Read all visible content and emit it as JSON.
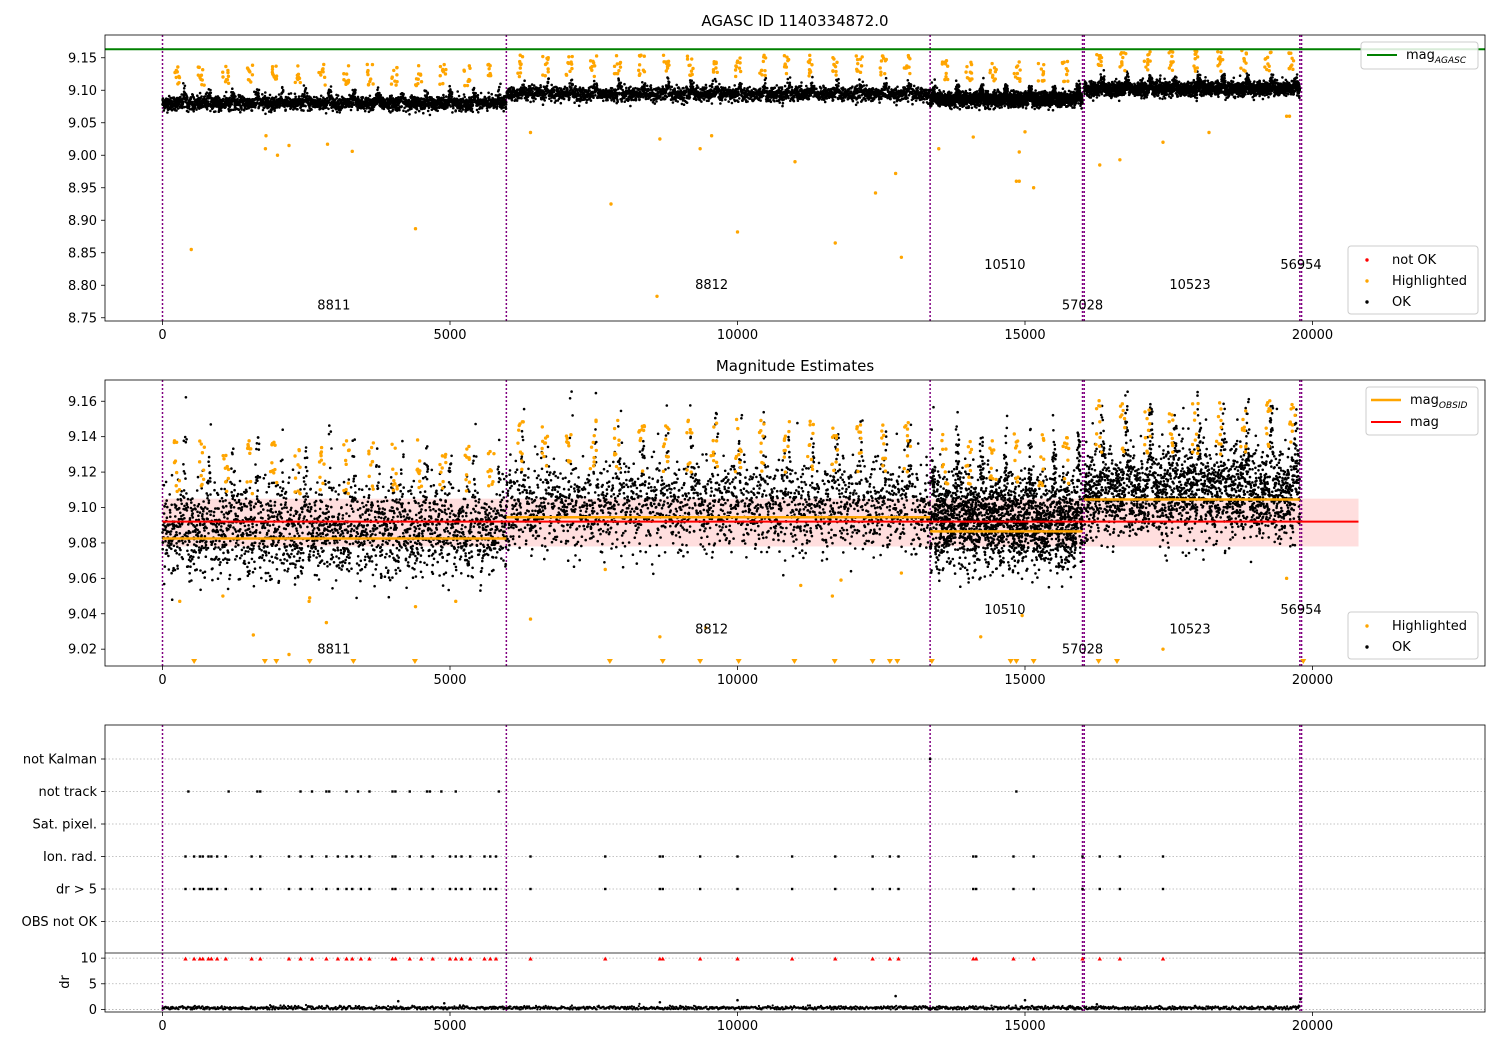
{
  "figure": {
    "background": "#ffffff"
  },
  "colors": {
    "ok": "#000000",
    "highlighted": "#ffa500",
    "not_ok": "#ff0000",
    "agasc_line": "#008000",
    "mag_line": "#ff0000",
    "mag_band": "#ffdede",
    "obsid_line": "#ffa500",
    "obs_boundary": "#800080",
    "grid": "#b0b0b0"
  },
  "chart_data": [
    {
      "type": "scatter",
      "title": "AGASC ID 1140334872.0",
      "xlim": [
        -1000,
        23000
      ],
      "ylim": [
        8.745,
        9.185
      ],
      "xticks": [
        0,
        5000,
        10000,
        15000,
        20000
      ],
      "xtick_labels": [
        "0",
        "5000",
        "10000",
        "15000",
        "20000"
      ],
      "yticks": [
        8.75,
        8.8,
        8.85,
        8.9,
        8.95,
        9.0,
        9.05,
        9.1,
        9.15
      ],
      "ytick_labels": [
        "8.75",
        "8.80",
        "8.85",
        "8.90",
        "8.95",
        "9.00",
        "9.05",
        "9.10",
        "9.15"
      ],
      "hlines": [
        {
          "name": "mag_AGASC",
          "y": 9.163,
          "x_range": [
            -1000,
            23000
          ],
          "color": "#008000"
        }
      ],
      "obs_boundaries": [
        0,
        5980,
        13350,
        16000,
        16030,
        19780,
        19810
      ],
      "obsids": [
        {
          "label": "8811",
          "x": 2980,
          "y": 8.763
        },
        {
          "label": "8812",
          "x": 9550,
          "y": 8.794
        },
        {
          "label": "10510",
          "x": 14650,
          "y": 8.825
        },
        {
          "label": "57028",
          "x": 16000,
          "y": 8.763
        },
        {
          "label": "10523",
          "x": 17870,
          "y": 8.794
        },
        {
          "label": "56954",
          "x": 19800,
          "y": 8.825
        }
      ],
      "segments": [
        {
          "obsid": "8811",
          "x_range": [
            0,
            5980
          ],
          "mean": 9.08,
          "spread": 0.012
        },
        {
          "obsid": "8812",
          "x_range": [
            5980,
            13350
          ],
          "mean": 9.094,
          "spread": 0.012
        },
        {
          "obsid": "10510",
          "x_range": [
            13350,
            16000
          ],
          "mean": 9.086,
          "spread": 0.012
        },
        {
          "obsid": "10523",
          "x_range": [
            16030,
            19780
          ],
          "mean": 9.102,
          "spread": 0.012
        }
      ],
      "series": [
        {
          "name": "not OK",
          "color": "#ff0000",
          "points": []
        },
        {
          "name": "Highlighted",
          "color": "#ffa500",
          "points": [
            [
              500,
              8.855
            ],
            [
              1800,
              9.03
            ],
            [
              1790,
              9.01
            ],
            [
              2000,
              9.0
            ],
            [
              2200,
              9.015
            ],
            [
              2870,
              9.017
            ],
            [
              3300,
              9.006
            ],
            [
              4400,
              8.887
            ],
            [
              6400,
              9.035
            ],
            [
              7800,
              8.925
            ],
            [
              8600,
              8.783
            ],
            [
              8650,
              9.025
            ],
            [
              9350,
              9.01
            ],
            [
              9550,
              9.03
            ],
            [
              10000,
              8.882
            ],
            [
              11000,
              8.99
            ],
            [
              11700,
              8.865
            ],
            [
              12400,
              8.942
            ],
            [
              12750,
              8.972
            ],
            [
              12850,
              8.843
            ],
            [
              13500,
              9.01
            ],
            [
              14100,
              9.028
            ],
            [
              14850,
              8.96
            ],
            [
              14900,
              8.96
            ],
            [
              15150,
              8.95
            ],
            [
              14900,
              9.005
            ],
            [
              15000,
              9.036
            ],
            [
              16300,
              8.985
            ],
            [
              16650,
              8.993
            ],
            [
              17400,
              9.02
            ],
            [
              18200,
              9.035
            ],
            [
              19550,
              9.06
            ],
            [
              19600,
              9.06
            ]
          ]
        },
        {
          "name": "OK",
          "color": "#000000",
          "points": []
        }
      ],
      "legend": {
        "position": "lower right",
        "entries": [
          {
            "label": "not OK",
            "color": "#ff0000",
            "marker": "point"
          },
          {
            "label": "Highlighted",
            "color": "#ffa500",
            "marker": "point"
          },
          {
            "label": "OK",
            "color": "#000000",
            "marker": "point"
          }
        ]
      },
      "legend_line": {
        "position": "upper right",
        "base": "mag",
        "sub": "AGASC",
        "color": "#008000"
      }
    },
    {
      "type": "scatter",
      "title": "Magnitude Estimates",
      "xlim": [
        -1000,
        23000
      ],
      "ylim": [
        9.0105,
        9.172
      ],
      "xticks": [
        0,
        5000,
        10000,
        15000,
        20000
      ],
      "xtick_labels": [
        "0",
        "5000",
        "10000",
        "15000",
        "20000"
      ],
      "yticks": [
        9.02,
        9.04,
        9.06,
        9.08,
        9.1,
        9.12,
        9.14,
        9.16
      ],
      "ytick_labels": [
        "9.02",
        "9.04",
        "9.06",
        "9.08",
        "9.10",
        "9.12",
        "9.14",
        "9.16"
      ],
      "mag": {
        "value": 9.092,
        "x_range": [
          0,
          20800
        ],
        "band": [
          9.078,
          9.105
        ]
      },
      "obsid_mags": [
        {
          "obsid": "8811",
          "x_range": [
            0,
            5980
          ],
          "y": 9.0825
        },
        {
          "obsid": "8812",
          "x_range": [
            5980,
            13350
          ],
          "y": 9.0945
        },
        {
          "obsid": "10510",
          "x_range": [
            13350,
            16000
          ],
          "y": 9.0865
        },
        {
          "obsid": "10523",
          "x_range": [
            16030,
            19780
          ],
          "y": 9.1045
        }
      ],
      "obs_boundaries": [
        0,
        5980,
        13350,
        16000,
        16030,
        19780,
        19810
      ],
      "obsids": [
        {
          "label": "8811",
          "x": 2980,
          "y": 9.0175
        },
        {
          "label": "8812",
          "x": 9550,
          "y": 9.0288
        },
        {
          "label": "10510",
          "x": 14650,
          "y": 9.04
        },
        {
          "label": "57028",
          "x": 16000,
          "y": 9.0175
        },
        {
          "label": "10523",
          "x": 17870,
          "y": 9.0288
        },
        {
          "label": "56954",
          "x": 19800,
          "y": 9.04
        }
      ],
      "offscale_markers_x": [
        550,
        1780,
        1980,
        2560,
        3320,
        4390,
        7780,
        8700,
        9350,
        10020,
        10990,
        11690,
        12350,
        12650,
        12780,
        13380,
        14750,
        14850,
        15150,
        16280,
        16600,
        19840
      ],
      "series": [
        {
          "name": "Highlighted",
          "color": "#ffa500",
          "points": [
            [
              300,
              9.047
            ],
            [
              1050,
              9.05
            ],
            [
              1580,
              9.028
            ],
            [
              2200,
              9.017
            ],
            [
              2550,
              9.047
            ],
            [
              2560,
              9.049
            ],
            [
              2850,
              9.035
            ],
            [
              4400,
              9.044
            ],
            [
              5100,
              9.047
            ],
            [
              6400,
              9.037
            ],
            [
              7700,
              9.065
            ],
            [
              8650,
              9.027
            ],
            [
              9450,
              9.032
            ],
            [
              11100,
              9.056
            ],
            [
              11650,
              9.05
            ],
            [
              11800,
              9.059
            ],
            [
              12850,
              9.063
            ],
            [
              14230,
              9.027
            ],
            [
              14950,
              9.039
            ],
            [
              17400,
              9.02
            ],
            [
              19550,
              9.06
            ]
          ]
        },
        {
          "name": "OK",
          "color": "#000000",
          "points": []
        }
      ],
      "legend": {
        "position": "lower right",
        "entries": [
          {
            "label": "Highlighted",
            "color": "#ffa500",
            "marker": "point"
          },
          {
            "label": "OK",
            "color": "#000000",
            "marker": "point"
          }
        ]
      },
      "legend_lines": {
        "position": "upper right",
        "entries": [
          {
            "base": "mag",
            "sub": "OBSID",
            "color": "#ffa500"
          },
          {
            "base": "mag",
            "sub": "",
            "color": "#ff0000"
          }
        ]
      }
    },
    {
      "type": "scatter",
      "title": "",
      "xlim": [
        -1000,
        23000
      ],
      "xticks": [
        0,
        5000,
        10000,
        15000,
        20000
      ],
      "xtick_labels": [
        "0",
        "5000",
        "10000",
        "15000",
        "20000"
      ],
      "flag_rows": [
        "not Kalman",
        "not track",
        "Sat. pixel.",
        "Ion. rad.",
        "dr > 5",
        "OBS not OK"
      ],
      "obs_boundaries": [
        0,
        5980,
        13350,
        16000,
        16030,
        19780,
        19810
      ],
      "flags": {
        "not Kalman": [
          13350
        ],
        "not track": [
          450,
          1150,
          1650,
          1700,
          2400,
          2600,
          2850,
          2900,
          3200,
          3400,
          3600,
          4000,
          4050,
          4300,
          4600,
          4650,
          4850,
          5100,
          5850,
          14850
        ],
        "Sat. pixel.": [],
        "Ion. rad.": [
          400,
          550,
          650,
          700,
          800,
          850,
          950,
          1100,
          1550,
          1700,
          2200,
          2400,
          2600,
          2850,
          3050,
          3200,
          3300,
          3450,
          3600,
          4000,
          4050,
          4300,
          4500,
          4700,
          5000,
          5100,
          5200,
          5350,
          5600,
          5700,
          5800,
          6400,
          7700,
          8650,
          8700,
          9350,
          10000,
          10950,
          11700,
          12350,
          12650,
          12800,
          14100,
          14150,
          14800,
          15150,
          16000,
          16300,
          16650,
          17400
        ],
        "dr > 5": [
          400,
          550,
          650,
          700,
          800,
          850,
          950,
          1100,
          1550,
          1700,
          2200,
          2400,
          2600,
          2850,
          3050,
          3200,
          3300,
          3450,
          3600,
          4000,
          4050,
          4300,
          4500,
          4700,
          5000,
          5100,
          5200,
          5350,
          5600,
          5700,
          5800,
          6400,
          7700,
          8650,
          8700,
          9350,
          10000,
          10950,
          11700,
          12350,
          12650,
          12800,
          14100,
          14150,
          14800,
          15150,
          16000,
          16300,
          16650,
          17400
        ],
        "OBS not OK": []
      },
      "dr": {
        "ylabel": "dr",
        "ylim": [
          -0.5,
          11
        ],
        "yticks": [
          0,
          5,
          10
        ],
        "ytick_labels": [
          "0",
          "5",
          "10"
        ],
        "threshold_line": 10.5,
        "clipped_x": [
          400,
          550,
          650,
          700,
          800,
          850,
          950,
          1100,
          1550,
          1700,
          2200,
          2400,
          2600,
          2850,
          3050,
          3200,
          3300,
          3450,
          3600,
          4000,
          4050,
          4300,
          4500,
          4700,
          5000,
          5100,
          5200,
          5350,
          5600,
          5700,
          5800,
          6400,
          7700,
          8650,
          8700,
          9350,
          10000,
          10950,
          11700,
          12350,
          12650,
          12800,
          14100,
          14150,
          14800,
          15150,
          16000,
          16300,
          16650,
          17400
        ],
        "baseline": 0.3,
        "outliers": [
          [
            4100,
            1.6
          ],
          [
            4900,
            1.2
          ],
          [
            8650,
            1.4
          ],
          [
            10000,
            1.8
          ],
          [
            12750,
            2.6
          ],
          [
            15000,
            1.8
          ],
          [
            16250,
            1.0
          ],
          [
            19790,
            2.0
          ]
        ]
      }
    }
  ]
}
